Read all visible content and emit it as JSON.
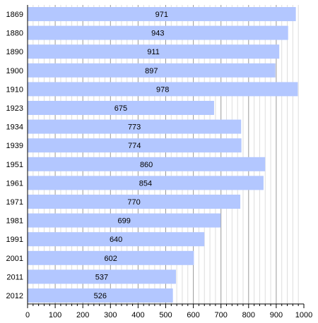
{
  "chart_data": {
    "type": "bar",
    "orientation": "horizontal",
    "title": "",
    "xlabel": "",
    "ylabel": "",
    "categories": [
      "1869",
      "1880",
      "1890",
      "1900",
      "1910",
      "1923",
      "1934",
      "1939",
      "1951",
      "1961",
      "1971",
      "1981",
      "1991",
      "2001",
      "2011",
      "2012"
    ],
    "values": [
      971,
      943,
      911,
      897,
      978,
      675,
      773,
      774,
      860,
      854,
      770,
      699,
      640,
      602,
      537,
      526
    ],
    "xlim": [
      0,
      1000
    ],
    "xticks": [
      "0",
      "100",
      "200",
      "300",
      "400",
      "500",
      "600",
      "700",
      "800",
      "900",
      "1000"
    ],
    "grid": true,
    "legend": "none",
    "colors": {
      "bar": "#b3c7ff",
      "grid_major": "#999999",
      "grid_minor": "#dddddd",
      "axis": "#000000"
    }
  }
}
